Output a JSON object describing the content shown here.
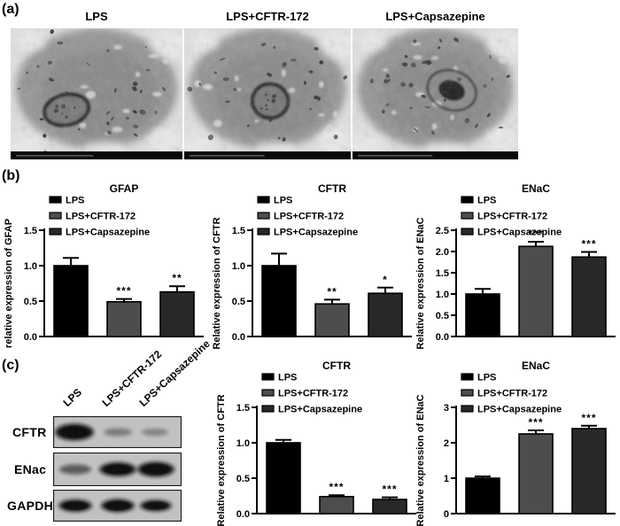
{
  "figure": {
    "panel_a": {
      "label": "(a)",
      "images": [
        {
          "title": "LPS"
        },
        {
          "title": "LPS+CFTR-172"
        },
        {
          "title": "LPS+Capsazepine"
        }
      ]
    },
    "panel_b": {
      "label": "(b)"
    },
    "panel_c": {
      "label": "(c)",
      "blot": {
        "lane_labels": [
          "LPS",
          "LPS+CFTR-172",
          "LPS+Capsazepine"
        ],
        "row_labels": [
          "CFTR",
          "ENac",
          "GAPDH"
        ]
      }
    }
  },
  "legend": [
    {
      "label": "LPS",
      "color": "#000000"
    },
    {
      "label": "LPS+CFTR-172",
      "color": "#4d4d4d"
    },
    {
      "label": "LPS+Capsazepine",
      "color": "#282828"
    }
  ],
  "colors": {
    "series": [
      "#000000",
      "#4d4d4d",
      "#282828"
    ],
    "axis": "#000000",
    "blot_background": "#c2c2c2",
    "band": "#0a0a0a"
  },
  "chart_data": [
    {
      "id": "b_gfap",
      "type": "bar",
      "panel": "b",
      "title": "GFAP",
      "ylabel": "relative expression of GFAP",
      "categories": [
        "LPS",
        "LPS+CFTR-172",
        "LPS+Capsazepine"
      ],
      "values": [
        1.0,
        0.49,
        0.63
      ],
      "errors": [
        0.11,
        0.04,
        0.08
      ],
      "sig": [
        "",
        "***",
        "**"
      ],
      "yticks": [
        "0.0",
        "0.5",
        "1.0",
        "1.5"
      ],
      "ymax": 1.5,
      "ylim": [
        0,
        1.5
      ],
      "grid": false,
      "legend_position": "upper-left"
    },
    {
      "id": "b_cftr",
      "type": "bar",
      "panel": "b",
      "title": "CFTR",
      "ylabel": "Relative expression of CFTR",
      "categories": [
        "LPS",
        "LPS+CFTR-172",
        "LPS+Capsazepine"
      ],
      "values": [
        1.0,
        0.46,
        0.61
      ],
      "errors": [
        0.17,
        0.06,
        0.08
      ],
      "sig": [
        "",
        "**",
        "*"
      ],
      "yticks": [
        "0.0",
        "0.5",
        "1.0",
        "1.5"
      ],
      "ymax": 1.5,
      "ylim": [
        0,
        1.5
      ],
      "grid": false,
      "legend_position": "upper-left"
    },
    {
      "id": "b_enac",
      "type": "bar",
      "panel": "b",
      "title": "ENaC",
      "ylabel": "Relative expression of ENaC",
      "categories": [
        "LPS",
        "LPS+CFTR-172",
        "LPS+Capsazepine"
      ],
      "values": [
        1.0,
        2.12,
        1.87
      ],
      "errors": [
        0.12,
        0.11,
        0.12
      ],
      "sig": [
        "",
        "***",
        "***"
      ],
      "yticks": [
        "0.0",
        "0.5",
        "1.0",
        "1.5",
        "2.0",
        "2.5"
      ],
      "ymax": 2.5,
      "ylim": [
        0,
        2.5
      ],
      "grid": false,
      "legend_position": "upper-left"
    },
    {
      "id": "c_cftr",
      "type": "bar",
      "panel": "c",
      "title": "CFTR",
      "ylabel": "Relative expression of CFTR",
      "categories": [
        "LPS",
        "LPS+CFTR-172",
        "LPS+Capsazepine"
      ],
      "values": [
        1.0,
        0.24,
        0.2
      ],
      "errors": [
        0.04,
        0.02,
        0.03
      ],
      "sig": [
        "",
        "***",
        "***"
      ],
      "yticks": [
        "0.0",
        "0.5",
        "1.0",
        "1.5"
      ],
      "ymax": 1.5,
      "ylim": [
        0,
        1.5
      ],
      "grid": false,
      "legend_position": "upper-left"
    },
    {
      "id": "c_enac",
      "type": "bar",
      "panel": "c",
      "title": "ENaC",
      "ylabel": "Relative expression of ENaC",
      "categories": [
        "LPS",
        "LPS+CFTR-172",
        "LPS+Capsazepine"
      ],
      "values": [
        1.0,
        2.25,
        2.4
      ],
      "errors": [
        0.05,
        0.1,
        0.08
      ],
      "sig": [
        "",
        "***",
        "***"
      ],
      "yticks": [
        "0",
        "1",
        "2",
        "3"
      ],
      "ymax": 3,
      "ylim": [
        0,
        3
      ],
      "grid": false,
      "legend_position": "upper-left"
    }
  ]
}
